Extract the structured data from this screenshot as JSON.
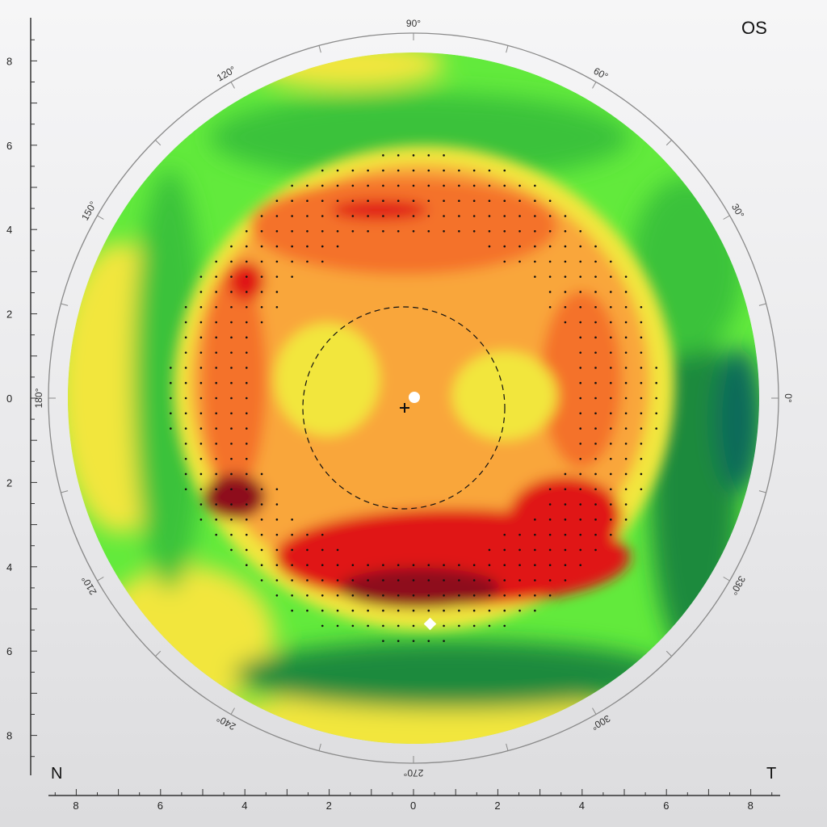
{
  "eye_label": "OS",
  "nasal_label": "N",
  "temporal_label": "T",
  "colors": {
    "darkred": "#8e0f1e",
    "red": "#e01414",
    "orange": "#f4722a",
    "lightorange": "#f9a63a",
    "yellow": "#f2e63c",
    "lightgreen": "#62ea3c",
    "green": "#3bc23a",
    "darkgreen": "#1a8a3e",
    "teal": "#0e6b5a"
  },
  "y_axis_ticks": [
    "8",
    "6",
    "4",
    "2",
    "0",
    "2",
    "4",
    "6",
    "8"
  ],
  "x_axis_ticks": [
    "8",
    "6",
    "4",
    "2",
    "0",
    "2",
    "4",
    "6",
    "8"
  ],
  "angle_labels": [
    {
      "deg": 90,
      "text": "90°"
    },
    {
      "deg": 60,
      "text": "60°"
    },
    {
      "deg": 30,
      "text": "30°"
    },
    {
      "deg": 0,
      "text": "0°"
    },
    {
      "deg": 330,
      "text": "330°"
    },
    {
      "deg": 300,
      "text": "300°"
    },
    {
      "deg": 270,
      "text": "270°"
    },
    {
      "deg": 240,
      "text": "240°"
    },
    {
      "deg": 210,
      "text": "210°"
    },
    {
      "deg": 180,
      "text": "180°"
    },
    {
      "deg": 150,
      "text": "150°"
    },
    {
      "deg": 120,
      "text": "120°"
    }
  ],
  "markers": {
    "pupil_center": "white-dot",
    "apex": "plus-cross",
    "thinnest_point": "white-diamond"
  }
}
